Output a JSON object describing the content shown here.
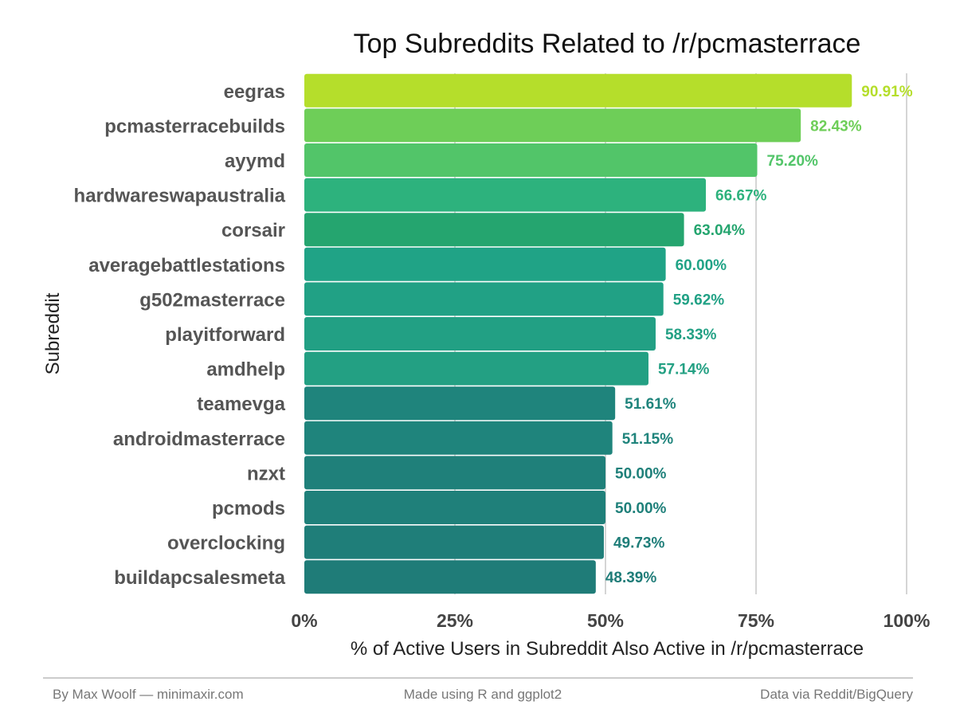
{
  "chart_data": {
    "type": "bar",
    "orientation": "horizontal",
    "title": "Top Subreddits Related to /r/pcmasterrace",
    "xlabel": "% of Active Users in Subreddit Also Active in /r/pcmasterrace",
    "ylabel": "Subreddit",
    "xlim": [
      0,
      100
    ],
    "x_ticks": [
      "0%",
      "25%",
      "50%",
      "75%",
      "100%"
    ],
    "x_tick_values": [
      0,
      25,
      50,
      75,
      100
    ],
    "grid": "vertical",
    "legend": "none",
    "categories": [
      "eegras",
      "pcmasterracebuilds",
      "ayymd",
      "hardwareswapaustralia",
      "corsair",
      "averagebattlestations",
      "g502masterrace",
      "playitforward",
      "amdhelp",
      "teamevga",
      "androidmasterrace",
      "nzxt",
      "pcmods",
      "overclocking",
      "buildapcsalesmeta"
    ],
    "values": [
      90.91,
      82.43,
      75.2,
      66.67,
      63.04,
      60.0,
      59.62,
      58.33,
      57.14,
      51.61,
      51.15,
      50.0,
      50.0,
      49.73,
      48.39
    ],
    "value_labels": [
      "90.91%",
      "82.43%",
      "75.20%",
      "66.67%",
      "63.04%",
      "60.00%",
      "59.62%",
      "58.33%",
      "57.14%",
      "51.61%",
      "51.15%",
      "50.00%",
      "50.00%",
      "49.73%",
      "48.39%"
    ],
    "bar_colors": [
      "#b5de2b",
      "#6ece58",
      "#52c569",
      "#2db27d",
      "#25a56f",
      "#20a386",
      "#21a185",
      "#22a084",
      "#23a083",
      "#1f847c",
      "#1f847c",
      "#1f807a",
      "#1f807a",
      "#1f7e79",
      "#1f7c78"
    ]
  },
  "footer": {
    "left": "By Max Woolf — minimaxir.com",
    "center": "Made using R and ggplot2",
    "right": "Data via Reddit/BigQuery"
  },
  "colors": {
    "footer_rule": "#cccccc",
    "grid": "#d5d5d5"
  }
}
